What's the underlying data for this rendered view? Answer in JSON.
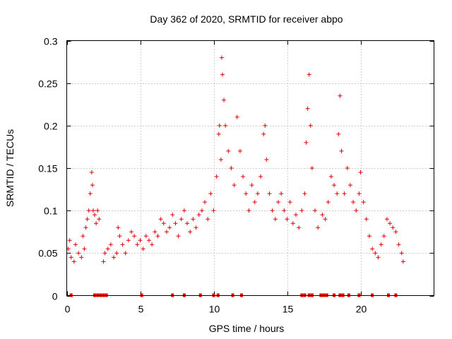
{
  "chart_data": {
    "type": "scatter",
    "title": "Day 362 of 2020, SRMTID for receiver abpo",
    "xlabel": "GPS time / hours",
    "ylabel": "SRMTID / TECUs",
    "xlim": [
      0,
      25
    ],
    "ylim": [
      0,
      0.3
    ],
    "x_ticks": [
      0,
      5,
      10,
      15,
      20
    ],
    "x_tick_labels": [
      "0",
      "5",
      "10",
      "15",
      "20"
    ],
    "y_ticks": [
      0,
      0.05,
      0.1,
      0.15,
      0.2,
      0.25,
      0.3
    ],
    "y_tick_labels": [
      "0",
      "0.05",
      "0.1",
      "0.15",
      "0.2",
      "0.25",
      "0.3"
    ],
    "grid": true,
    "marker": "plus",
    "color": "#e00000",
    "series_points": [
      [
        0.1,
        0.055
      ],
      [
        0.2,
        0.065
      ],
      [
        0.3,
        0.045
      ],
      [
        0.5,
        0.04
      ],
      [
        0.6,
        0.06
      ],
      [
        0.8,
        0.05
      ],
      [
        1.0,
        0.045
      ],
      [
        1.1,
        0.07
      ],
      [
        1.2,
        0.055
      ],
      [
        1.3,
        0.08
      ],
      [
        1.4,
        0.09
      ],
      [
        1.5,
        0.1
      ],
      [
        1.6,
        0.12
      ],
      [
        1.7,
        0.145
      ],
      [
        1.75,
        0.13
      ],
      [
        1.8,
        0.1
      ],
      [
        1.9,
        0.095
      ],
      [
        2.0,
        0.085
      ],
      [
        2.1,
        0.1
      ],
      [
        2.2,
        0.09
      ],
      [
        2.5,
        0.04
      ],
      [
        2.6,
        0.05
      ],
      [
        2.8,
        0.055
      ],
      [
        3.0,
        0.06
      ],
      [
        3.2,
        0.045
      ],
      [
        3.4,
        0.05
      ],
      [
        3.5,
        0.08
      ],
      [
        3.6,
        0.07
      ],
      [
        3.8,
        0.06
      ],
      [
        4.0,
        0.05
      ],
      [
        4.2,
        0.065
      ],
      [
        4.4,
        0.075
      ],
      [
        4.6,
        0.07
      ],
      [
        4.8,
        0.06
      ],
      [
        5.0,
        0.065
      ],
      [
        5.2,
        0.055
      ],
      [
        5.4,
        0.07
      ],
      [
        5.6,
        0.065
      ],
      [
        5.8,
        0.06
      ],
      [
        6.0,
        0.075
      ],
      [
        6.2,
        0.07
      ],
      [
        6.4,
        0.09
      ],
      [
        6.6,
        0.085
      ],
      [
        6.8,
        0.075
      ],
      [
        7.0,
        0.08
      ],
      [
        7.2,
        0.095
      ],
      [
        7.4,
        0.085
      ],
      [
        7.6,
        0.07
      ],
      [
        7.8,
        0.09
      ],
      [
        8.0,
        0.1
      ],
      [
        8.2,
        0.085
      ],
      [
        8.4,
        0.075
      ],
      [
        8.6,
        0.09
      ],
      [
        8.8,
        0.08
      ],
      [
        9.0,
        0.095
      ],
      [
        9.2,
        0.1
      ],
      [
        9.4,
        0.11
      ],
      [
        9.6,
        0.09
      ],
      [
        9.8,
        0.12
      ],
      [
        10.0,
        0.1
      ],
      [
        10.2,
        0.14
      ],
      [
        10.35,
        0.19
      ],
      [
        10.4,
        0.2
      ],
      [
        10.5,
        0.16
      ],
      [
        10.55,
        0.28
      ],
      [
        10.6,
        0.26
      ],
      [
        10.7,
        0.23
      ],
      [
        10.8,
        0.2
      ],
      [
        11.0,
        0.17
      ],
      [
        11.2,
        0.15
      ],
      [
        11.4,
        0.13
      ],
      [
        11.6,
        0.21
      ],
      [
        11.8,
        0.17
      ],
      [
        12.0,
        0.14
      ],
      [
        12.2,
        0.12
      ],
      [
        12.4,
        0.1
      ],
      [
        12.6,
        0.13
      ],
      [
        12.8,
        0.11
      ],
      [
        13.0,
        0.12
      ],
      [
        13.2,
        0.14
      ],
      [
        13.4,
        0.19
      ],
      [
        13.5,
        0.2
      ],
      [
        13.6,
        0.16
      ],
      [
        13.8,
        0.12
      ],
      [
        14.0,
        0.1
      ],
      [
        14.2,
        0.09
      ],
      [
        14.4,
        0.11
      ],
      [
        14.6,
        0.12
      ],
      [
        14.8,
        0.1
      ],
      [
        15.0,
        0.09
      ],
      [
        15.2,
        0.11
      ],
      [
        15.4,
        0.085
      ],
      [
        15.6,
        0.095
      ],
      [
        15.8,
        0.08
      ],
      [
        16.0,
        0.1
      ],
      [
        16.2,
        0.12
      ],
      [
        16.3,
        0.18
      ],
      [
        16.4,
        0.22
      ],
      [
        16.5,
        0.26
      ],
      [
        16.6,
        0.2
      ],
      [
        16.7,
        0.15
      ],
      [
        16.9,
        0.1
      ],
      [
        17.1,
        0.08
      ],
      [
        17.4,
        0.095
      ],
      [
        17.6,
        0.09
      ],
      [
        17.8,
        0.11
      ],
      [
        18.0,
        0.14
      ],
      [
        18.2,
        0.13
      ],
      [
        18.4,
        0.12
      ],
      [
        18.5,
        0.19
      ],
      [
        18.6,
        0.235
      ],
      [
        18.7,
        0.17
      ],
      [
        18.9,
        0.12
      ],
      [
        19.1,
        0.15
      ],
      [
        19.3,
        0.13
      ],
      [
        19.5,
        0.11
      ],
      [
        19.7,
        0.1
      ],
      [
        19.9,
        0.12
      ],
      [
        20.0,
        0.145
      ],
      [
        20.2,
        0.11
      ],
      [
        20.4,
        0.09
      ],
      [
        20.6,
        0.07
      ],
      [
        20.8,
        0.055
      ],
      [
        21.0,
        0.05
      ],
      [
        21.2,
        0.045
      ],
      [
        21.4,
        0.06
      ],
      [
        21.6,
        0.07
      ],
      [
        21.8,
        0.09
      ],
      [
        22.0,
        0.085
      ],
      [
        22.2,
        0.08
      ],
      [
        22.4,
        0.075
      ],
      [
        22.6,
        0.06
      ],
      [
        22.8,
        0.05
      ],
      [
        22.9,
        0.04
      ]
    ],
    "zero_markers_x": [
      0.3,
      1.9,
      2.1,
      2.3,
      2.5,
      2.7,
      5.1,
      7.2,
      8.0,
      9.1,
      10.0,
      10.3,
      11.3,
      11.9,
      16.0,
      16.2,
      16.5,
      16.7,
      17.3,
      17.5,
      17.7,
      18.2,
      18.6,
      18.8,
      19.2,
      19.9,
      20.8,
      21.9,
      22.4
    ]
  }
}
